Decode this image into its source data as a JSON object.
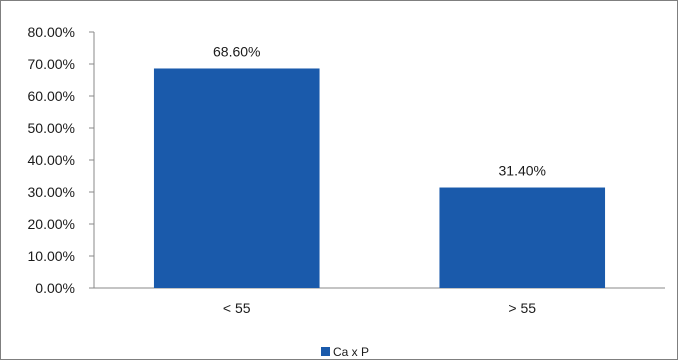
{
  "chart_data": {
    "type": "bar",
    "title": "",
    "xlabel": "",
    "ylabel": "",
    "categories": [
      "< 55",
      "> 55"
    ],
    "series": [
      {
        "name": "Ca x P",
        "values": [
          68.6,
          31.4
        ],
        "color": "#1a5aab"
      }
    ],
    "data_labels": [
      "68.60%",
      "31.40%"
    ],
    "y_ticks": [
      "0.00%",
      "10.00%",
      "20.00%",
      "30.00%",
      "40.00%",
      "50.00%",
      "60.00%",
      "70.00%",
      "80.00%"
    ],
    "ylim": [
      0,
      80
    ],
    "y_step": 10,
    "grid": false,
    "legend_position": "bottom"
  }
}
